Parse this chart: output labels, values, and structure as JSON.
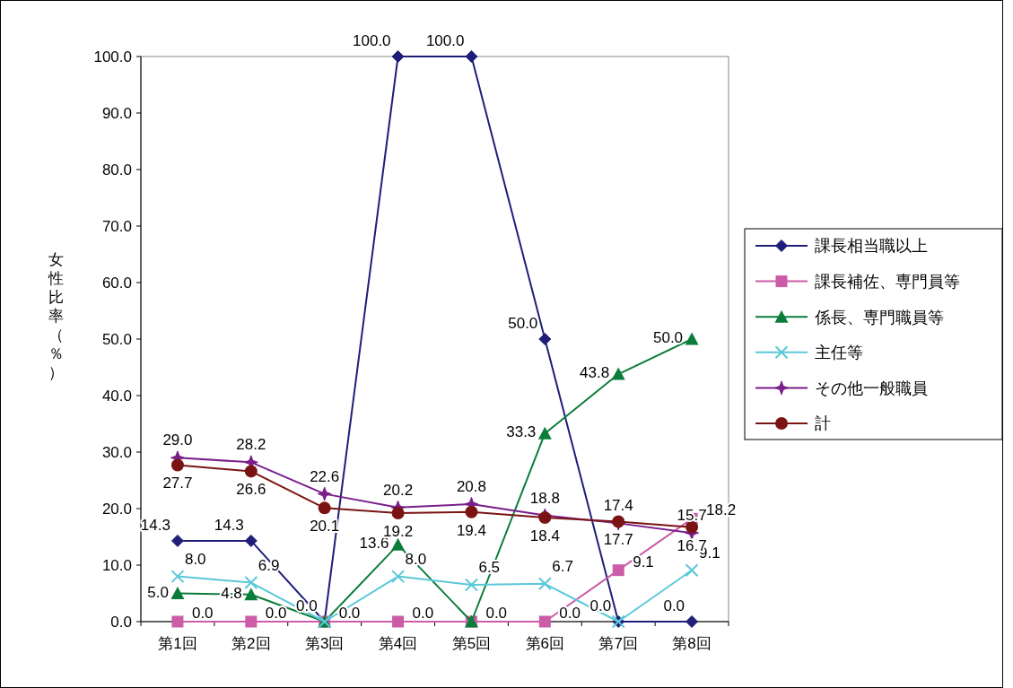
{
  "chart_data": {
    "type": "line",
    "ylabel": "女性比率（％）",
    "categories": [
      "第1回",
      "第2回",
      "第3回",
      "第4回",
      "第5回",
      "第6回",
      "第7回",
      "第8回"
    ],
    "ylim": [
      0,
      100
    ],
    "yticks": [
      {
        "value": 0,
        "label": "0.0"
      },
      {
        "value": 10,
        "label": "10.0"
      },
      {
        "value": 20,
        "label": "20.0"
      },
      {
        "value": 30,
        "label": "30.0"
      },
      {
        "value": 40,
        "label": "40.0"
      },
      {
        "value": 50,
        "label": "50.0"
      },
      {
        "value": 60,
        "label": "60.0"
      },
      {
        "value": 70,
        "label": "70.0"
      },
      {
        "value": 80,
        "label": "80.0"
      },
      {
        "value": 90,
        "label": "90.0"
      },
      {
        "value": 100,
        "label": "100.0"
      }
    ],
    "grid": false,
    "legend": "right",
    "line_style": "solid",
    "series": [
      {
        "name": "課長相当職以上",
        "color": "#1f1f7a",
        "marker": "diamond",
        "values": [
          14.3,
          14.3,
          0,
          100,
          100,
          50,
          0,
          0
        ],
        "value_labels": [
          "14.3",
          "14.3",
          "0.0",
          "100.0",
          "100.0",
          "50.0",
          "0.0",
          "0.0"
        ]
      },
      {
        "name": "課長補佐、専門員等",
        "color": "#cc5ca8",
        "marker": "square",
        "values": [
          0,
          0,
          0,
          0,
          0,
          0,
          9.1,
          18.2
        ],
        "value_labels": [
          "0.0",
          "0.0",
          "0.0",
          "0.0",
          "0.0",
          "0.0",
          "9.1",
          "18.2"
        ]
      },
      {
        "name": "係長、専門職員等",
        "color": "#0b7d3b",
        "marker": "triangle",
        "values": [
          5.0,
          4.8,
          0,
          13.6,
          0,
          33.3,
          43.8,
          50.0
        ],
        "value_labels": [
          "5.0",
          "4.8",
          null,
          "13.6",
          null,
          "33.3",
          "43.8",
          "50.0"
        ]
      },
      {
        "name": "主任等",
        "color": "#5bc8d8",
        "marker": "cross",
        "values": [
          8.0,
          6.9,
          0,
          8.0,
          6.5,
          6.7,
          0,
          9.1
        ],
        "value_labels": [
          "8.0",
          "6.9",
          null,
          "8.0",
          "6.5",
          "6.7",
          null,
          "9.1"
        ]
      },
      {
        "name": "その他一般職員",
        "color": "#7a1f8a",
        "marker": "star",
        "values": [
          29.0,
          28.2,
          22.6,
          20.2,
          20.8,
          18.8,
          17.4,
          15.7
        ],
        "value_labels": [
          "29.0",
          "28.2",
          "22.6",
          "20.2",
          "20.8",
          "18.8",
          "17.4",
          "15.7"
        ]
      },
      {
        "name": "計",
        "color": "#7a1414",
        "marker": "circle",
        "values": [
          27.7,
          26.6,
          20.1,
          19.2,
          19.4,
          18.4,
          17.7,
          16.7
        ],
        "value_labels": [
          "27.7",
          "26.6",
          "20.1",
          "19.2",
          "19.4",
          "18.4",
          "17.7",
          "16.7"
        ]
      }
    ]
  }
}
